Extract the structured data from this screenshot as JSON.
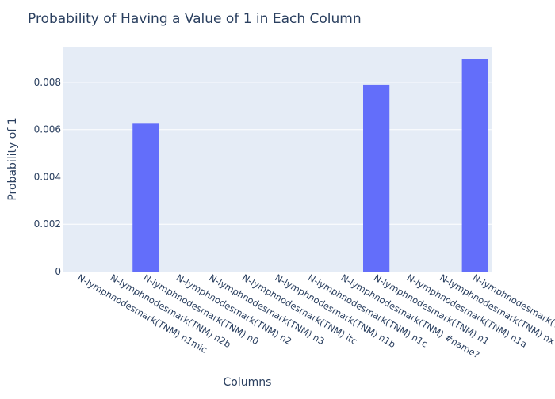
{
  "chart_data": {
    "type": "bar",
    "title": "Probability of Having a Value of 1 in Each Column",
    "xlabel": "Columns",
    "ylabel": "Probability of 1",
    "categories": [
      "N-lymphnodesmark(TNM) n1mic",
      "N-lymphnodesmark(TNM) n2b",
      "N-lymphnodesmark(TNM) n0",
      "N-lymphnodesmark(TNM) n2",
      "N-lymphnodesmark(TNM) n3",
      "N-lymphnodesmark(TNM) itc",
      "N-lymphnodesmark(TNM) n1b",
      "N-lymphnodesmark(TNM) n1c",
      "N-lymphnodesmark(TNM) #name?",
      "N-lymphnodesmark(TNM) n1",
      "N-lymphnodesmark(TNM) n1a",
      "N-lymphnodesmark(TNM) nx",
      "N-lymphnodesmark(TNM) nan"
    ],
    "values": [
      0,
      0,
      0.00628,
      0,
      0,
      0,
      0,
      0,
      0,
      0.0079,
      0,
      0,
      0.009
    ],
    "ylim": [
      0,
      0.00947
    ],
    "yticks": [
      0,
      0.002,
      0.004,
      0.006,
      0.008
    ],
    "ytick_labels": [
      "0",
      "0.002",
      "0.004",
      "0.006",
      "0.008"
    ],
    "grid": true,
    "colors": {
      "bar": "#636efa",
      "plot_bg": "#e5ecf6",
      "grid": "#ffffff",
      "text": "#2a3f5f"
    }
  }
}
